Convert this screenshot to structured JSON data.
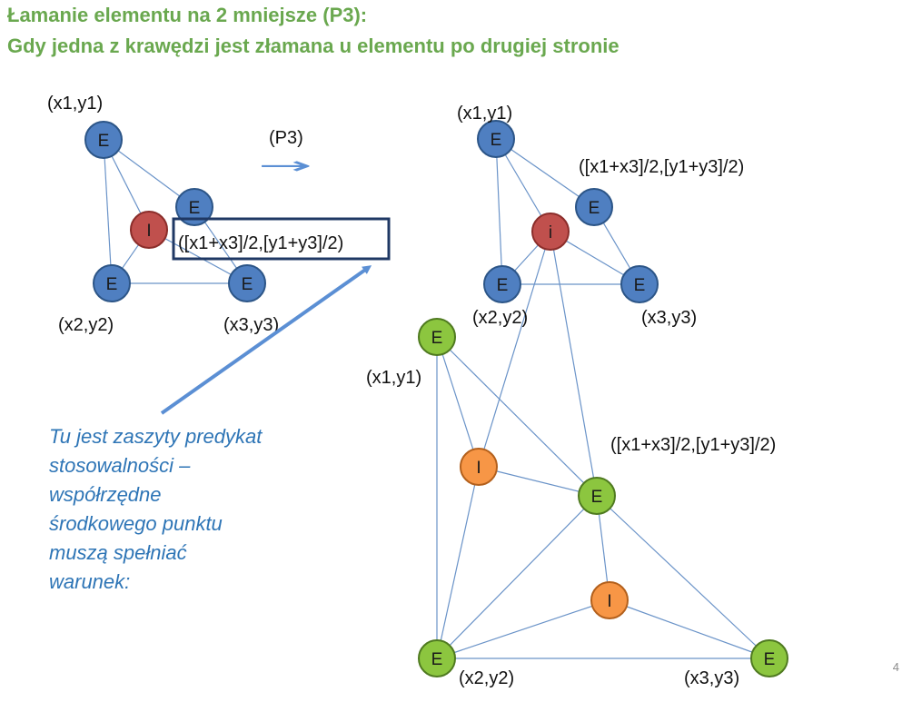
{
  "header": {
    "title_line1": "Łamanie elementu na 2 mniejsze (P3):",
    "title_line2": "Gdy jedna z krawędzi jest złamana u elementu po drugiej stronie"
  },
  "production_label": "(P3)",
  "arrow_label": "→",
  "labels": {
    "left_x1y1": "(x1,y1)",
    "left_x2y2": "(x2,y2)",
    "left_x3y3": "(x3,y3)",
    "left_mid": "([x1+x3]/2,[y1+y3]/2)",
    "rt_x1y1": "(x1,y1)",
    "rt_mid": "([x1+x3]/2,[y1+y3]/2)",
    "rt_x2y2": "(x2,y2)",
    "rt_x3y3": "(x3,y3)",
    "rb_x1y1": "(x1,y1)",
    "rb_mid": "([x1+x3]/2,[y1+y3]/2)",
    "rb_x2y2": "(x2,y2)",
    "rb_x3y3": "(x3,y3)"
  },
  "node_letters": {
    "E": "E",
    "I": "I",
    "i": "i"
  },
  "colors": {
    "title": "#6aa84f",
    "node_blue": "#4f7fc1",
    "node_red": "#c0504d",
    "node_green": "#8cc63f",
    "node_orange": "#f79646",
    "edge": "#6a93c8",
    "annotation": "#2e75b6",
    "highlight_box": "#1f3864"
  },
  "note": {
    "text": "Tu jest zaszyty predykat stosowalności – współrzędne środkowego punktu muszą spełniać warunek:"
  },
  "page_number": "4"
}
